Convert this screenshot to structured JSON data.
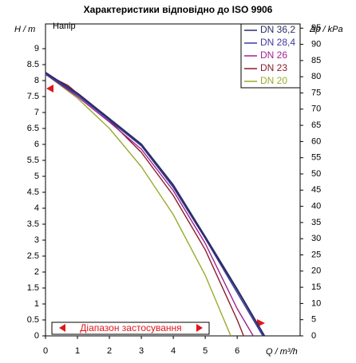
{
  "chart_data": {
    "type": "line",
    "title": "Характеристики відповідно до ISO 9906",
    "y_label": "H / m",
    "y2_label": "Δp / kPa",
    "x_label": "Q / m³/h",
    "plot_label": "Напір",
    "range_label": "Діапазон застосування",
    "xlim": [
      0,
      7.97
    ],
    "xticks": [
      0,
      1,
      2,
      3,
      4,
      5,
      6
    ],
    "ylim": [
      0,
      9.775
    ],
    "yticks": [
      0,
      0.5,
      1,
      1.5,
      2,
      2.5,
      3,
      3.5,
      4,
      4.5,
      5,
      5.5,
      6,
      6.5,
      7,
      7.5,
      8,
      8.5,
      9
    ],
    "y2lim": [
      0,
      96.3
    ],
    "y2ticks": [
      0,
      5,
      10,
      15,
      20,
      25,
      30,
      35,
      40,
      45,
      50,
      55,
      60,
      65,
      70,
      75,
      80,
      85,
      90,
      95
    ],
    "legend": "top-right",
    "series": [
      {
        "name": "DN 36,2",
        "color": "#2b2f66",
        "x": [
          0,
          1,
          2,
          3,
          4,
          5,
          6,
          6.85
        ],
        "values": [
          8.25,
          7.6,
          6.8,
          6.0,
          4.72,
          3.1,
          1.45,
          0
        ]
      },
      {
        "name": "DN 28,4",
        "color": "#3b3aa0",
        "x": [
          0,
          1,
          2,
          3,
          4,
          5,
          6,
          6.8
        ],
        "values": [
          8.2,
          7.55,
          6.75,
          5.95,
          4.65,
          3.05,
          1.35,
          0
        ]
      },
      {
        "name": "DN 26",
        "color": "#a3208f",
        "x": [
          0,
          1,
          2,
          3,
          4,
          5,
          6,
          6.5
        ],
        "values": [
          8.2,
          7.5,
          6.7,
          5.85,
          4.55,
          2.9,
          0.85,
          0
        ]
      },
      {
        "name": "DN 23",
        "color": "#8b1c2c",
        "x": [
          0,
          0.7,
          1,
          2,
          3,
          4,
          5,
          6,
          6.2
        ],
        "values": [
          8.2,
          7.85,
          7.6,
          6.75,
          5.75,
          4.4,
          2.7,
          0.5,
          0
        ]
      },
      {
        "name": "DN 20",
        "color": "#9aab2e",
        "x": [
          0,
          1,
          2,
          3,
          4,
          5,
          5.8
        ],
        "values": [
          8.2,
          7.45,
          6.5,
          5.3,
          3.8,
          1.9,
          0
        ]
      }
    ]
  }
}
